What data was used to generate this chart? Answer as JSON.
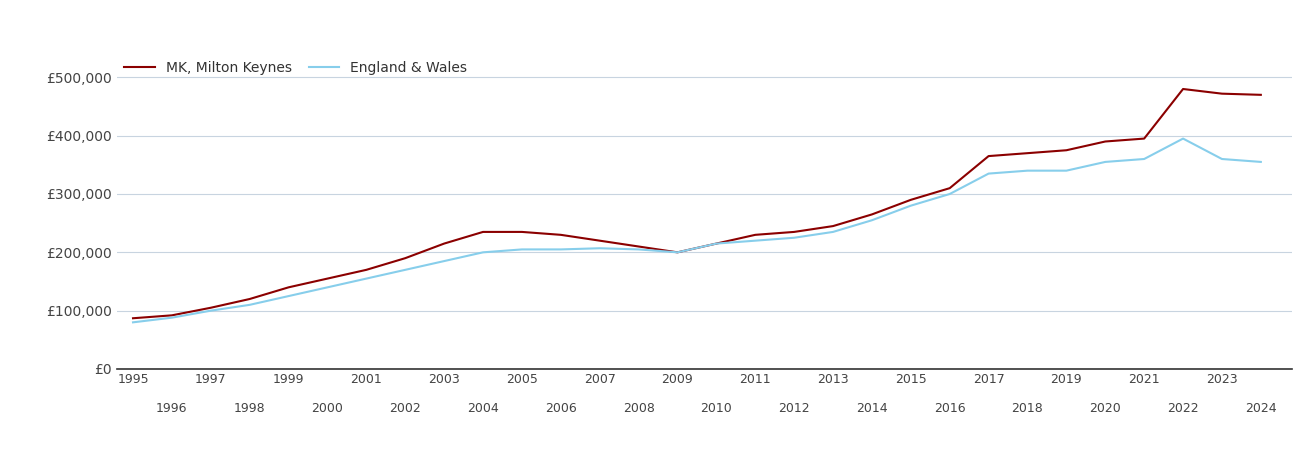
{
  "mk_years": [
    1995,
    1996,
    1997,
    1998,
    1999,
    2000,
    2001,
    2002,
    2003,
    2004,
    2005,
    2006,
    2007,
    2008,
    2009,
    2010,
    2011,
    2012,
    2013,
    2014,
    2015,
    2016,
    2017,
    2018,
    2019,
    2020,
    2021,
    2022,
    2023,
    2024
  ],
  "mk_values": [
    87000,
    92000,
    105000,
    120000,
    140000,
    155000,
    170000,
    190000,
    215000,
    235000,
    235000,
    230000,
    220000,
    210000,
    200000,
    215000,
    230000,
    235000,
    245000,
    265000,
    290000,
    310000,
    365000,
    370000,
    375000,
    390000,
    395000,
    480000,
    472000,
    470000
  ],
  "ew_years": [
    1995,
    1996,
    1997,
    1998,
    1999,
    2000,
    2001,
    2002,
    2003,
    2004,
    2005,
    2006,
    2007,
    2008,
    2009,
    2010,
    2011,
    2012,
    2013,
    2014,
    2015,
    2016,
    2017,
    2018,
    2019,
    2020,
    2021,
    2022,
    2023,
    2024
  ],
  "ew_values": [
    80000,
    88000,
    100000,
    110000,
    125000,
    140000,
    155000,
    170000,
    185000,
    200000,
    205000,
    205000,
    207000,
    205000,
    200000,
    215000,
    220000,
    225000,
    235000,
    255000,
    280000,
    300000,
    335000,
    340000,
    340000,
    355000,
    360000,
    395000,
    360000,
    355000
  ],
  "mk_color": "#8B0000",
  "ew_color": "#87CEEB",
  "mk_label": "MK, Milton Keynes",
  "ew_label": "England & Wales",
  "ylim": [
    0,
    540000
  ],
  "yticks": [
    0,
    100000,
    200000,
    300000,
    400000,
    500000
  ],
  "ytick_labels": [
    "£0",
    "£100,000",
    "£200,000",
    "£300,000",
    "£400,000",
    "£500,000"
  ],
  "bg_color": "#ffffff",
  "grid_color": "#c8d4e0",
  "line_width": 1.5,
  "xlim": [
    1994.6,
    2024.8
  ]
}
